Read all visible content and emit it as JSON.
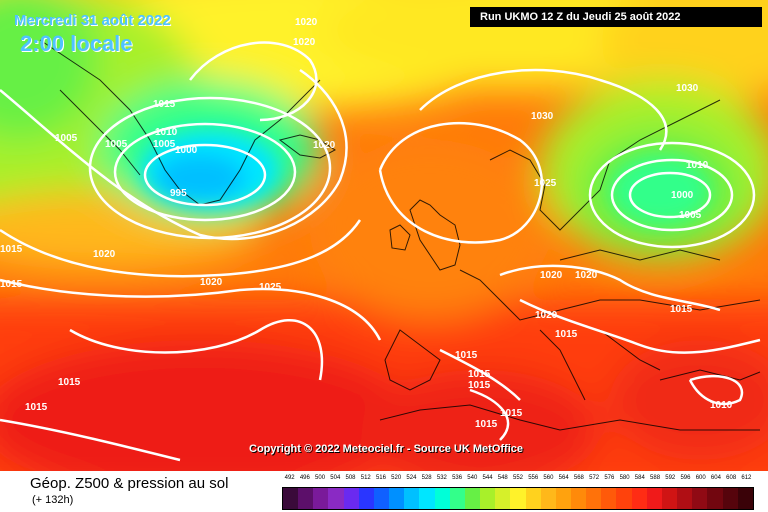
{
  "header": {
    "date": "Mercredi 31 août 2022",
    "local_time": "2:00 locale",
    "run_info": "Run UKMO 12 Z du Jeudi 25 août 2022"
  },
  "copyright": "Copyright © 2022 Meteociel.fr - Source UK MetOffice",
  "legend": {
    "title": "Géop. Z500 & pression au sol",
    "forecast_hour": "(+ 132h)",
    "ticks": [
      "492",
      "496",
      "500",
      "504",
      "508",
      "512",
      "516",
      "520",
      "524",
      "528",
      "532",
      "536",
      "540",
      "544",
      "548",
      "552",
      "556",
      "560",
      "564",
      "568",
      "572",
      "576",
      "580",
      "584",
      "588",
      "592",
      "596",
      "600",
      "604",
      "608",
      "612"
    ],
    "colors": [
      "#3a0a3a",
      "#5c0f6a",
      "#7a1a9a",
      "#8a2ac4",
      "#6a2af0",
      "#2a36ff",
      "#1060ff",
      "#0090ff",
      "#00c0ff",
      "#00e6ff",
      "#00ffd8",
      "#33ff8a",
      "#66f045",
      "#a8f02a",
      "#d6f02a",
      "#fff22a",
      "#ffd21e",
      "#ffb81a",
      "#ffa20e",
      "#ff8a0a",
      "#ff720a",
      "#ff5a0a",
      "#ff420c",
      "#ff2c14",
      "#f01a1a",
      "#d01414",
      "#b00e14",
      "#900a14",
      "#72060f",
      "#56040c",
      "#3a0208"
    ]
  },
  "isobar_labels": [
    "1020",
    "1020",
    "1020",
    "1010",
    "1015",
    "1005",
    "1005",
    "1005",
    "1010",
    "1000",
    "995",
    "1020",
    "1015",
    "1020",
    "1015",
    "1020",
    "1025",
    "1030",
    "1025",
    "1030",
    "1010",
    "1000",
    "1005",
    "1010",
    "1015",
    "1020",
    "1020",
    "1020",
    "1015",
    "1015",
    "1015",
    "1015",
    "1015",
    "1015",
    "1015",
    "1010",
    "1015"
  ]
}
